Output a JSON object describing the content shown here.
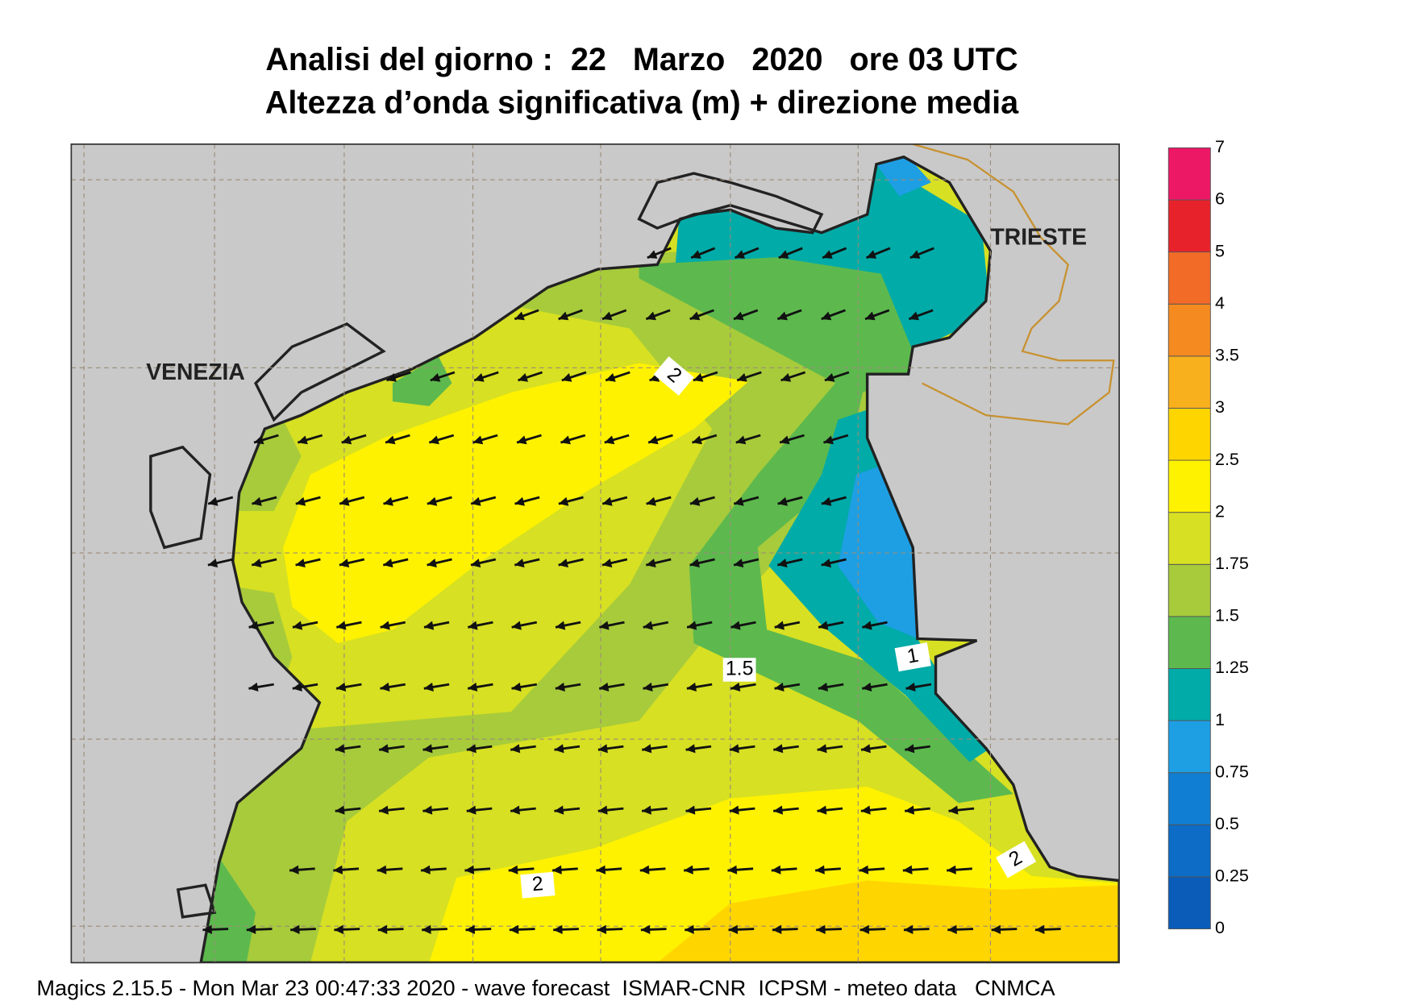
{
  "header": {
    "title_line1": "Analisi del giorno :  22   Marzo   2020   ore 03 UTC",
    "title_line2": "Altezza d’onda significativa (m) + direzione media"
  },
  "places": [
    "VENEZIA",
    "TRIESTE"
  ],
  "contour_labels": [
    "2",
    "1.5",
    "1",
    "2",
    "2"
  ],
  "colorbar": {
    "levels": [
      0,
      0.25,
      0.5,
      0.75,
      1,
      1.25,
      1.5,
      1.75,
      2,
      2.5,
      3,
      3.5,
      4,
      5,
      6,
      7
    ],
    "colors": [
      "#0a5cb8",
      "#0c6cc6",
      "#107ed2",
      "#1e9fe4",
      "#00aba8",
      "#5db94e",
      "#a7cb3b",
      "#d7e022",
      "#fff200",
      "#ffd500",
      "#f9b01d",
      "#f58b20",
      "#f26b27",
      "#e8222b",
      "#ec1866"
    ]
  },
  "footer": "Magics 2.15.5 - Mon Mar 23 00:47:33 2020 - wave forecast  ISMAR-CNR  ICPSM - meteo data   CNMCA"
}
